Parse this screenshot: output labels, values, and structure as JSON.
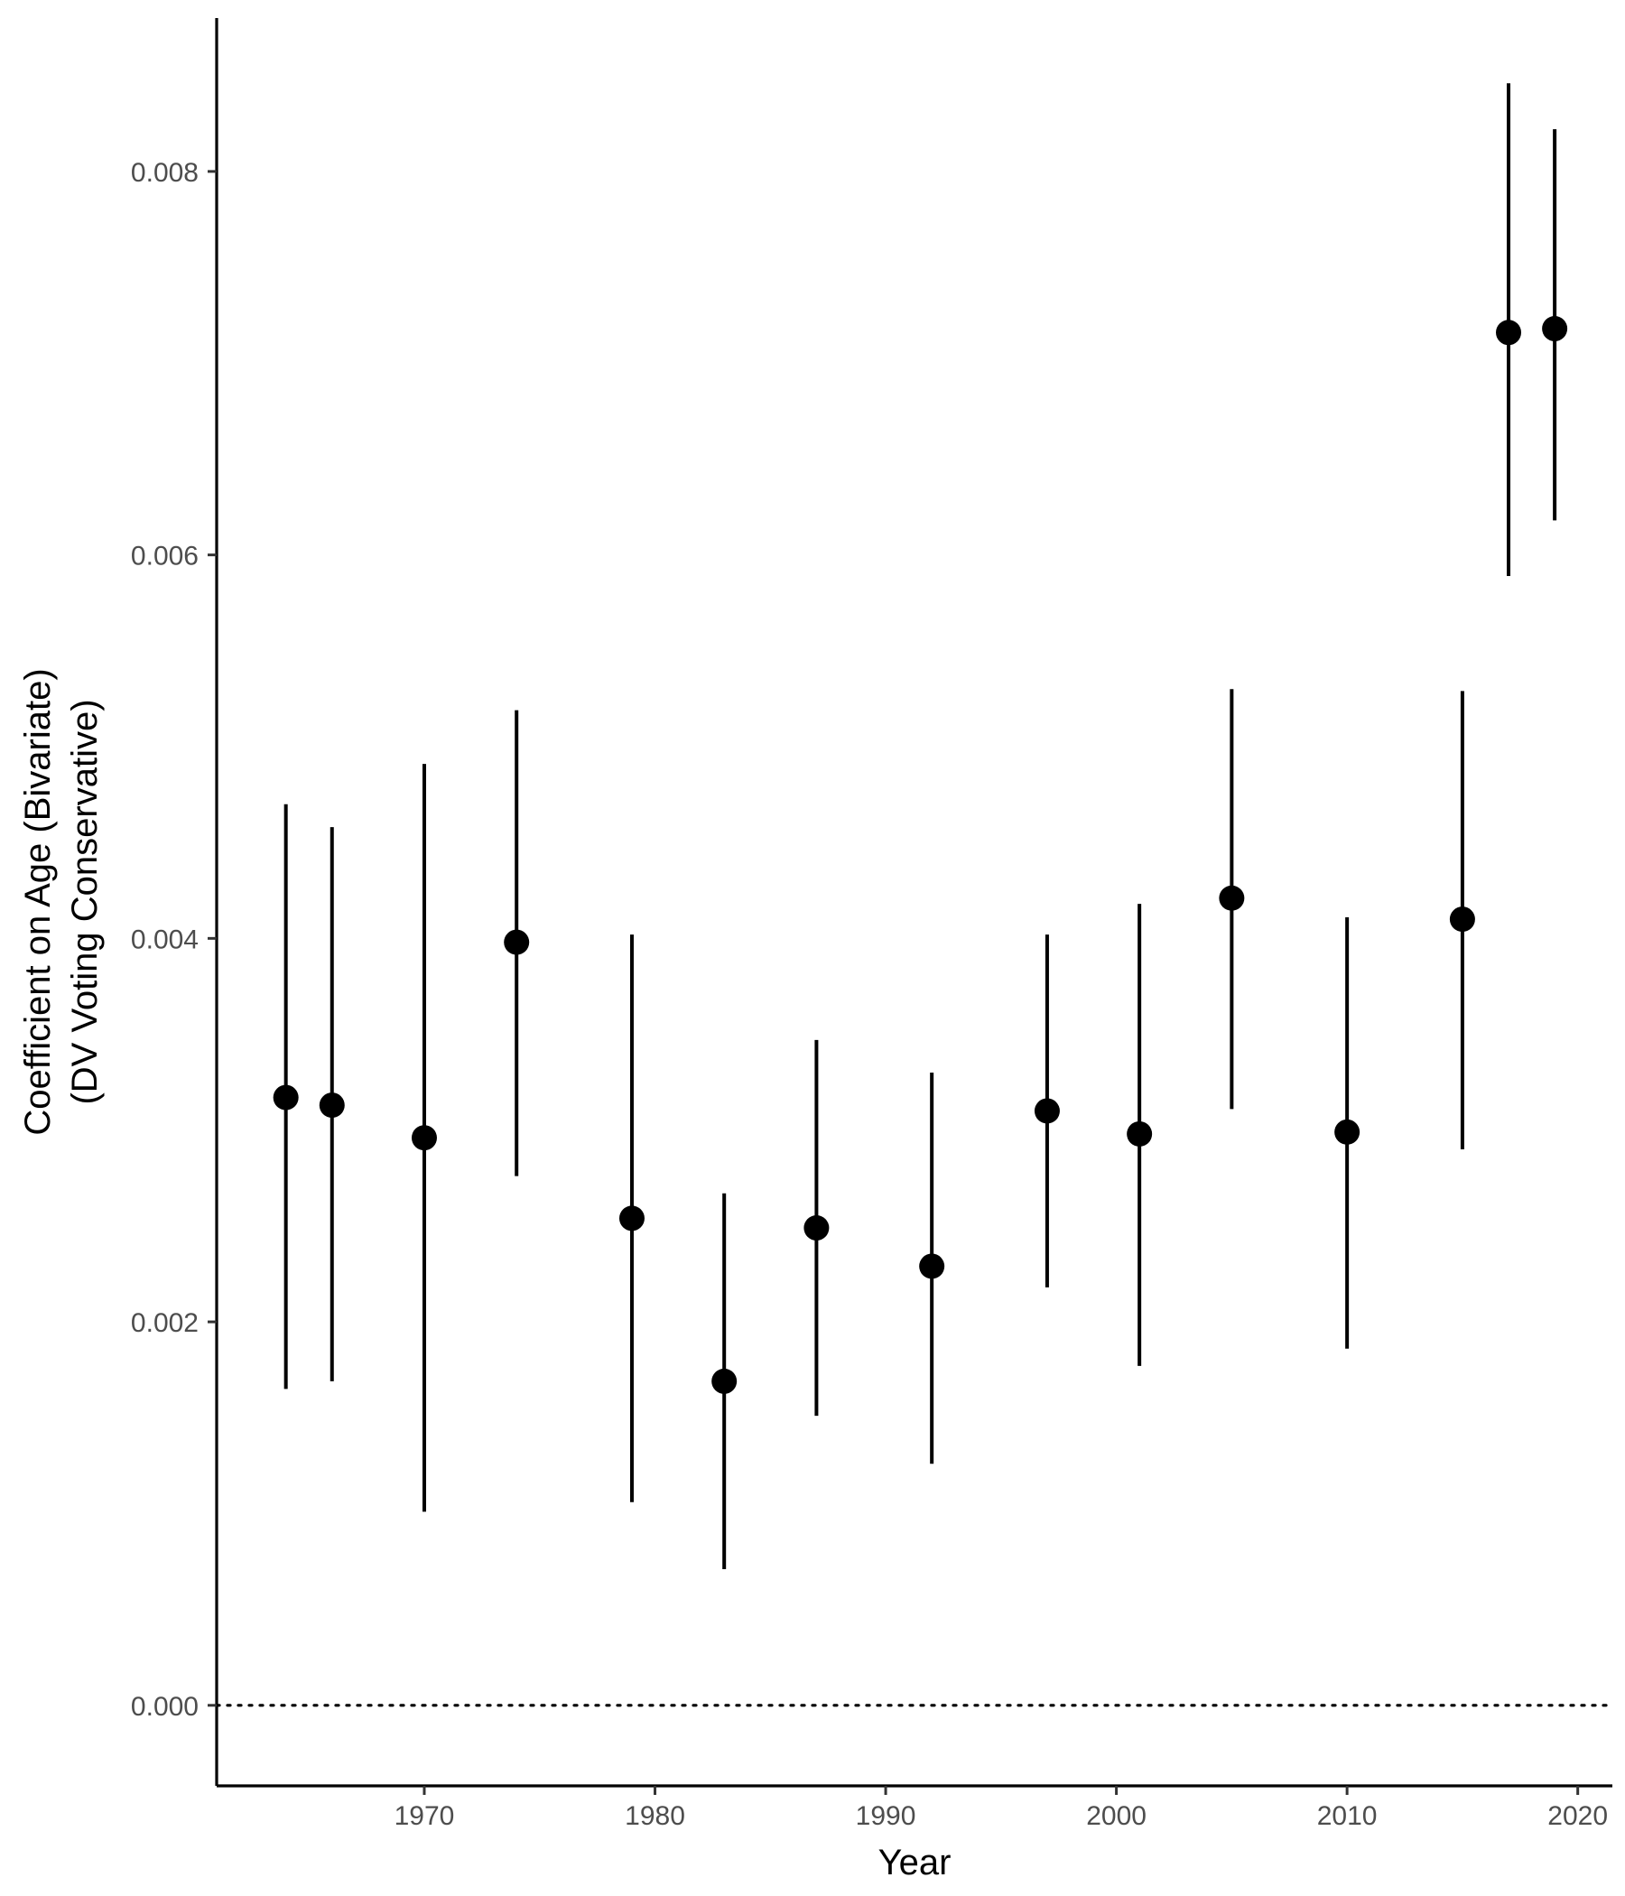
{
  "chart_data": {
    "type": "scatter",
    "title": "",
    "xlabel": "Year",
    "ylabel": [
      "Coefficient on Age (Bivariate)",
      "(DV Voting Conservative)"
    ],
    "xlim": [
      1961,
      2021.5
    ],
    "ylim": [
      -0.00042,
      0.0088
    ],
    "x_ticks": [
      1970,
      1980,
      1990,
      2000,
      2010,
      2020
    ],
    "y_ticks": [
      0.0,
      0.002,
      0.004,
      0.006,
      0.008
    ],
    "y_tick_labels": [
      "0.000",
      "0.002",
      "0.004",
      "0.006",
      "0.008"
    ],
    "reference_line": {
      "y": 0,
      "style": "dotted"
    },
    "grid": false,
    "legend": "none",
    "point_color": "#000000",
    "points": [
      {
        "x": 1964,
        "y": 0.00317,
        "lo": 0.00165,
        "hi": 0.0047
      },
      {
        "x": 1966,
        "y": 0.00313,
        "lo": 0.00169,
        "hi": 0.00458
      },
      {
        "x": 1970,
        "y": 0.00296,
        "lo": 0.00101,
        "hi": 0.00491
      },
      {
        "x": 1974,
        "y": 0.00398,
        "lo": 0.00276,
        "hi": 0.00519
      },
      {
        "x": 1979,
        "y": 0.00254,
        "lo": 0.00106,
        "hi": 0.00402
      },
      {
        "x": 1983,
        "y": 0.00169,
        "lo": 0.00071,
        "hi": 0.00267
      },
      {
        "x": 1987,
        "y": 0.00249,
        "lo": 0.00151,
        "hi": 0.00347
      },
      {
        "x": 1992,
        "y": 0.00229,
        "lo": 0.00126,
        "hi": 0.0033
      },
      {
        "x": 1997,
        "y": 0.0031,
        "lo": 0.00218,
        "hi": 0.00402
      },
      {
        "x": 2001,
        "y": 0.00298,
        "lo": 0.00177,
        "hi": 0.00418
      },
      {
        "x": 2005,
        "y": 0.00421,
        "lo": 0.00311,
        "hi": 0.0053
      },
      {
        "x": 2010,
        "y": 0.00299,
        "lo": 0.00186,
        "hi": 0.00411
      },
      {
        "x": 2015,
        "y": 0.0041,
        "lo": 0.0029,
        "hi": 0.00529
      },
      {
        "x": 2017,
        "y": 0.00716,
        "lo": 0.00589,
        "hi": 0.00846
      },
      {
        "x": 2019,
        "y": 0.00718,
        "lo": 0.00618,
        "hi": 0.00822
      }
    ]
  }
}
